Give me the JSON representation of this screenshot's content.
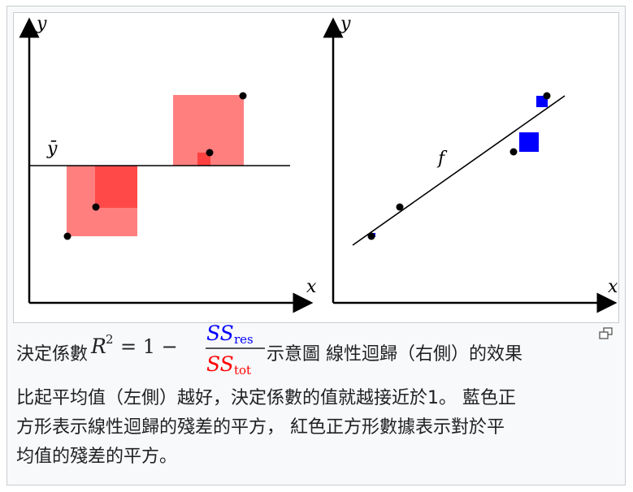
{
  "diagram": {
    "left_panel": {
      "axis_x": "x",
      "axis_y": "y",
      "mean_label": "ȳ"
    },
    "right_panel": {
      "axis_x": "x",
      "axis_y": "y",
      "fit_label": "f"
    },
    "colors": {
      "total_squares": "#ff7f7f",
      "total_overlap": "#ff4040",
      "residual_squares": "#0000ff",
      "points": "#000000"
    }
  },
  "caption": {
    "formula_r2": "R",
    "formula_exp": "2",
    "formula_rhs": "= 1 −",
    "ss": "SS",
    "res": "res",
    "tot": "tot",
    "line1_after_formula": "示意圖 線性迴歸（右側）的效果",
    "line1_before_formula": "決定係數",
    "line2": "比起平均值（左側）越好，決定係數的值就越接近於1。 藍色正",
    "line3": "方形表示線性迴歸的殘差的平方， 紅色正方形數據表示對於平",
    "line4": "均值的殘差的平方。"
  }
}
